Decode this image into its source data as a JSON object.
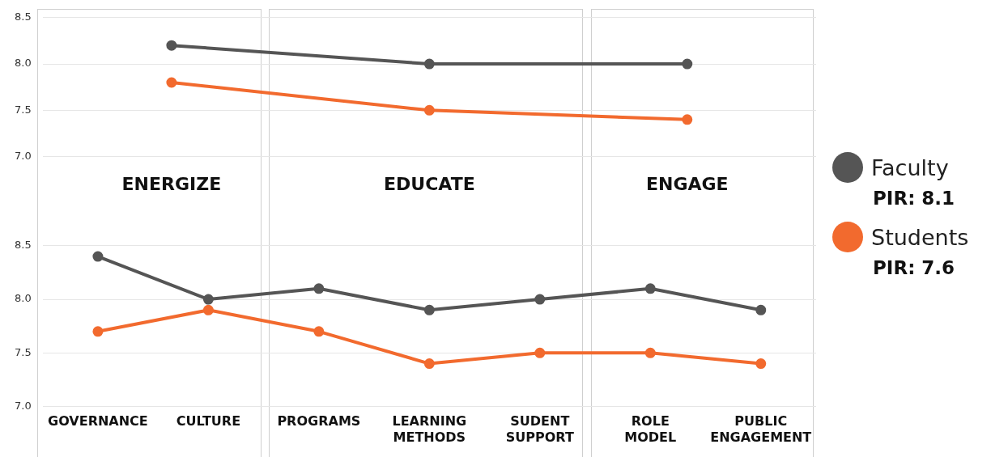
{
  "chart_data": [
    {
      "type": "line",
      "categories": [
        "ENERGIZE",
        "EDUCATE",
        "ENGAGE"
      ],
      "ylim": [
        7.0,
        8.5
      ],
      "yticks": [
        {
          "value": 7,
          "label": "7.0"
        },
        {
          "value": 7.5,
          "label": "7.5"
        },
        {
          "value": 8,
          "label": "8.0"
        },
        {
          "value": 8.5,
          "label": "8.5"
        }
      ],
      "grid": "y",
      "marker": "circle",
      "legend": "right",
      "series": [
        {
          "name": "Faculty",
          "color": "#555555",
          "values": [
            8.2,
            8.0,
            8.0
          ]
        },
        {
          "name": "Students",
          "color": "#f26a2e",
          "values": [
            7.8,
            7.5,
            7.4
          ]
        }
      ],
      "annotations": [
        "PIR: 8.1",
        "PIR: 7.6"
      ]
    },
    {
      "type": "line",
      "categories": [
        "GOVERNANCE",
        "CULTURE",
        "PROGRAMS",
        "LEARNING METHODS",
        "SUDENT SUPPORT",
        "ROLE MODEL",
        "PUBLIC ENGAGEMENT"
      ],
      "ylim": [
        7.0,
        8.5
      ],
      "yticks": [
        {
          "value": 7,
          "label": "7.0"
        },
        {
          "value": 7.5,
          "label": "7.5"
        },
        {
          "value": 8,
          "label": "8.0"
        },
        {
          "value": 8.5,
          "label": "8.5"
        }
      ],
      "grid": "y",
      "marker": "circle",
      "series": [
        {
          "color": "#555555",
          "values": [
            8.4,
            8.0,
            8.1,
            7.9,
            8.0,
            8.1,
            7.9
          ]
        },
        {
          "color": "#f26a2e",
          "values": [
            7.7,
            7.9,
            7.7,
            7.4,
            7.5,
            7.5,
            7.4
          ]
        }
      ]
    }
  ]
}
